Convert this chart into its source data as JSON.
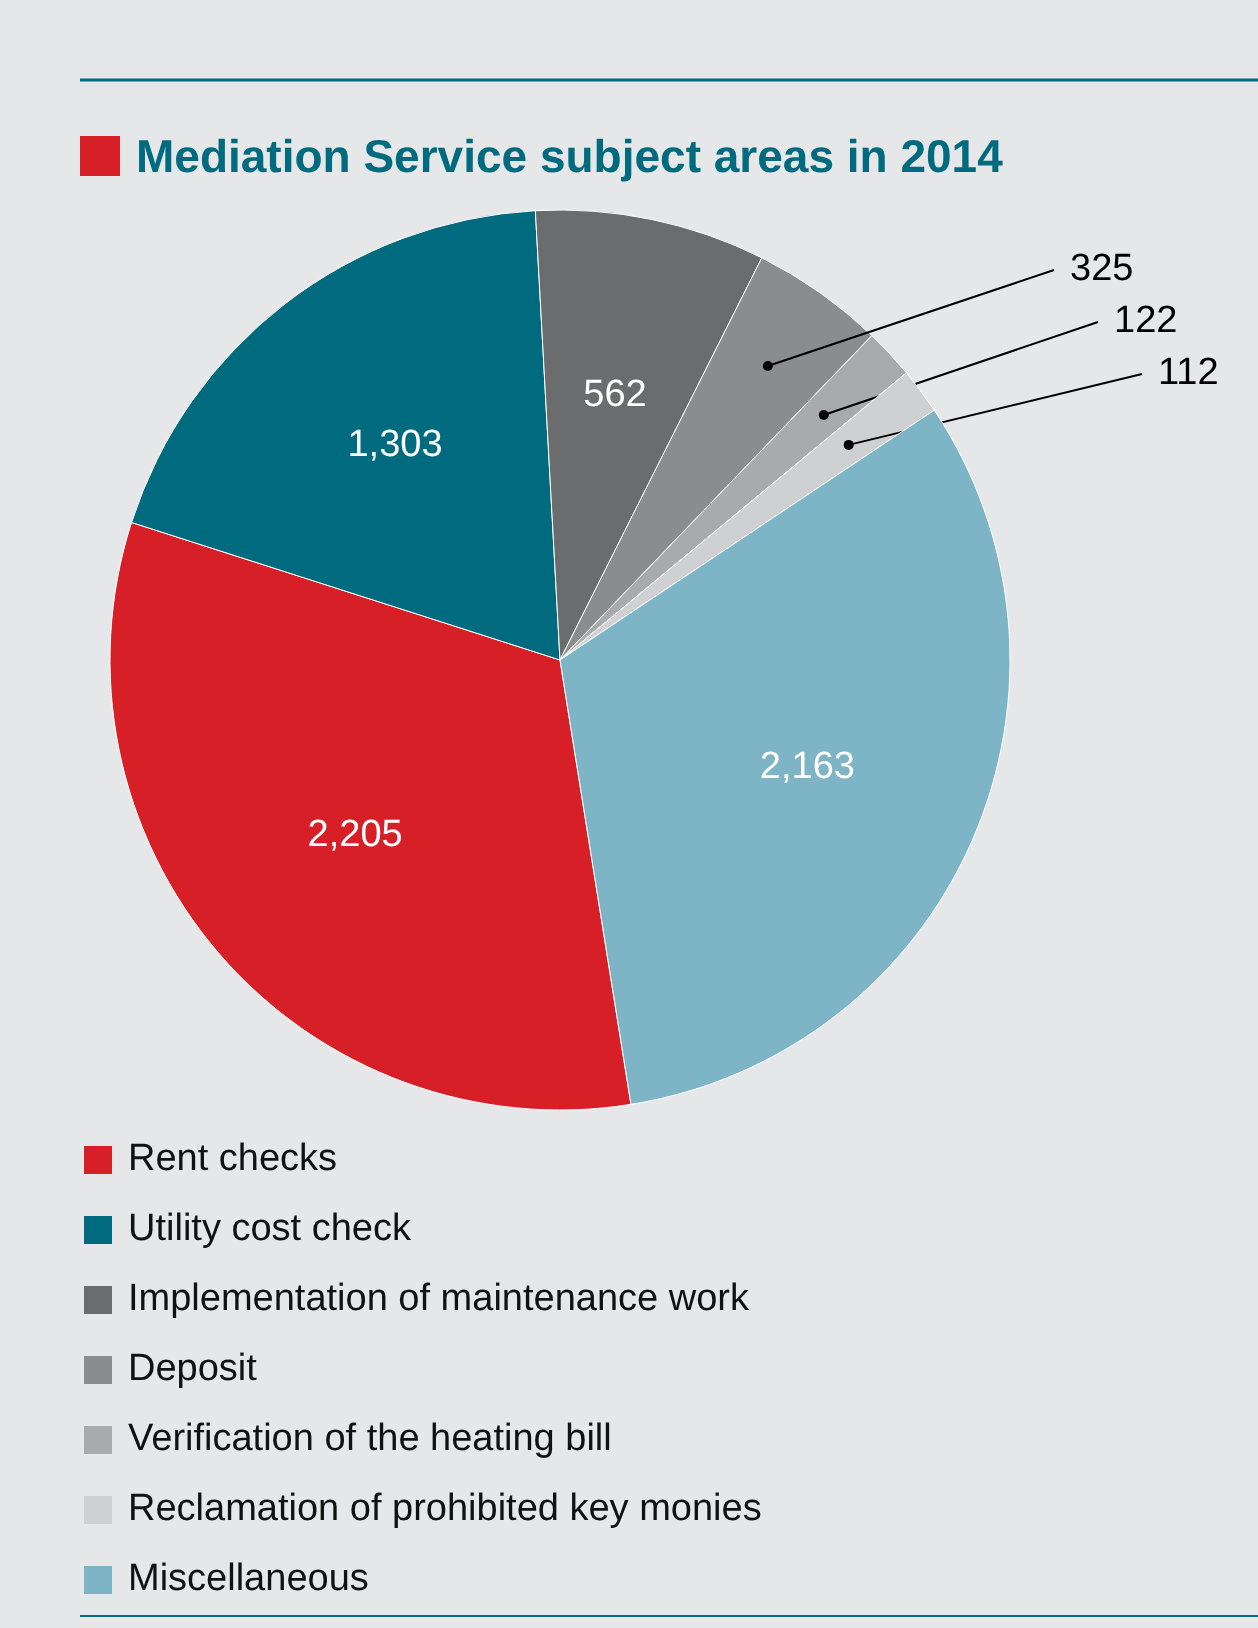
{
  "chart_data": {
    "type": "pie",
    "title": "Mediation Service subject areas in 2014",
    "categories": [
      "Rent checks",
      "Utility cost check",
      "Implementation of maintenance work",
      "Deposit",
      "Verification of the heating bill",
      "Reclamation of prohibited key monies",
      "Miscellaneous"
    ],
    "values": [
      2205,
      1303,
      562,
      325,
      122,
      112,
      2163
    ],
    "colors": [
      "#d71f27",
      "#006b7f",
      "#6b6c6e",
      "#8b8c8e",
      "#a9aaac",
      "#cfd0d2",
      "#7db5c6"
    ],
    "value_labels": [
      "2,205",
      "1,303",
      "562",
      "325",
      "122",
      "112",
      "2,163"
    ],
    "legend": "bottom"
  }
}
